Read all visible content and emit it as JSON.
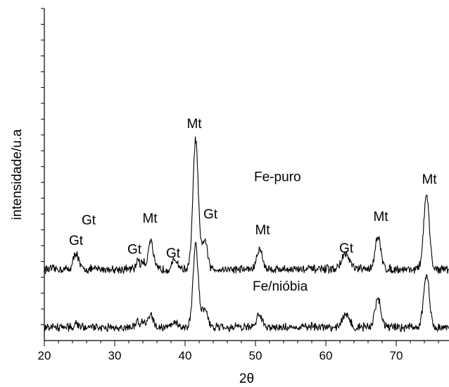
{
  "chart_data": {
    "type": "line",
    "title": "",
    "xlabel": "2θ",
    "ylabel": "intensidade/u.a",
    "xlim": [
      20,
      77.5
    ],
    "xticks": [
      20,
      30,
      40,
      50,
      60,
      70
    ],
    "grid": false,
    "legend": "none",
    "line_color": "#000000",
    "series": [
      {
        "name": "Fe-puro",
        "baseline": 0.215,
        "peaks": [
          {
            "x": 24.5,
            "h": 0.05,
            "w": 0.35
          },
          {
            "x": 33.3,
            "h": 0.033,
            "w": 0.2
          },
          {
            "x": 34.0,
            "h": 0.025,
            "w": 0.2
          },
          {
            "x": 35.1,
            "h": 0.09,
            "w": 0.35
          },
          {
            "x": 38.6,
            "h": 0.028,
            "w": 0.4
          },
          {
            "x": 41.5,
            "h": 0.39,
            "w": 0.38
          },
          {
            "x": 42.8,
            "h": 0.09,
            "w": 0.35
          },
          {
            "x": 50.6,
            "h": 0.06,
            "w": 0.4
          },
          {
            "x": 62.8,
            "h": 0.045,
            "w": 0.55
          },
          {
            "x": 67.4,
            "h": 0.095,
            "w": 0.42
          },
          {
            "x": 74.3,
            "h": 0.22,
            "w": 0.4
          }
        ]
      },
      {
        "name": "Fe/nióbia",
        "baseline": 0.04,
        "peaks": [
          {
            "x": 24.5,
            "h": 0.014,
            "w": 0.3
          },
          {
            "x": 33.3,
            "h": 0.02,
            "w": 0.2
          },
          {
            "x": 34.0,
            "h": 0.02,
            "w": 0.2
          },
          {
            "x": 35.1,
            "h": 0.045,
            "w": 0.35
          },
          {
            "x": 38.6,
            "h": 0.015,
            "w": 0.4
          },
          {
            "x": 41.5,
            "h": 0.25,
            "w": 0.38
          },
          {
            "x": 42.8,
            "h": 0.06,
            "w": 0.35
          },
          {
            "x": 50.6,
            "h": 0.04,
            "w": 0.4
          },
          {
            "x": 62.8,
            "h": 0.035,
            "w": 0.55
          },
          {
            "x": 67.4,
            "h": 0.085,
            "w": 0.42
          },
          {
            "x": 74.3,
            "h": 0.16,
            "w": 0.4
          }
        ]
      }
    ],
    "peak_labels": [
      {
        "text": "Gt",
        "x": 24.5,
        "y": 0.288
      },
      {
        "text": "Gt",
        "x": 26.3,
        "y": 0.35
      },
      {
        "text": "Gt",
        "x": 32.8,
        "y": 0.262
      },
      {
        "text": "Mt",
        "x": 35.0,
        "y": 0.355
      },
      {
        "text": "Gt",
        "x": 38.3,
        "y": 0.25
      },
      {
        "text": "Mt",
        "x": 41.3,
        "y": 0.64
      },
      {
        "text": "Gt",
        "x": 43.6,
        "y": 0.368
      },
      {
        "text": "Mt",
        "x": 51.0,
        "y": 0.32
      },
      {
        "text": "Gt",
        "x": 62.9,
        "y": 0.265
      },
      {
        "text": "Mt",
        "x": 67.8,
        "y": 0.36
      },
      {
        "text": "Mt",
        "x": 74.7,
        "y": 0.472
      }
    ],
    "series_labels": [
      {
        "text": "Fe-puro",
        "x": 49.8,
        "y": 0.48
      },
      {
        "text": "Fe/nióbia",
        "x": 49.6,
        "y": 0.15
      }
    ]
  }
}
